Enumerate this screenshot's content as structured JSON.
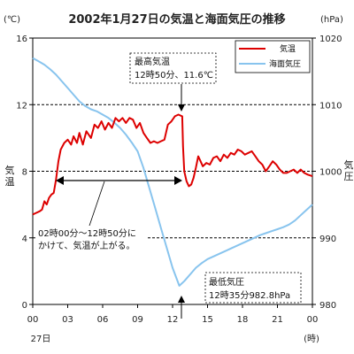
{
  "chart_data": {
    "type": "line",
    "title": "2002年1月27日の気温と海面気圧の推移",
    "y_left": {
      "unit": "(℃)",
      "label": [
        "気",
        "温"
      ],
      "ticks": [
        0,
        4,
        8,
        12,
        16
      ],
      "range": [
        0,
        16
      ]
    },
    "y_right": {
      "unit": "(hPa)",
      "label": [
        "気",
        "圧"
      ],
      "ticks": [
        980,
        990,
        1000,
        1010,
        1020
      ],
      "range": [
        980,
        1020
      ]
    },
    "x_axis": {
      "ticks": [
        "00",
        "03",
        "06",
        "09",
        "12",
        "15",
        "18",
        "21",
        "00"
      ],
      "tick_hours": [
        0,
        3,
        6,
        9,
        12,
        15,
        18,
        21,
        24
      ],
      "day_label": "27日",
      "unit_label": "(時)",
      "range": [
        0,
        24
      ]
    },
    "grid": "dashed horizontal lines at 4, 8, 12 ℃",
    "legend": {
      "position": "top-right",
      "items": [
        {
          "name": "気温",
          "color": "#dd0000"
        },
        {
          "name": "海面気圧",
          "color": "#88c4ee"
        }
      ]
    },
    "series": [
      {
        "name": "気温",
        "axis": "left",
        "color": "#dd0000",
        "points": [
          [
            0,
            5.4
          ],
          [
            0.3,
            5.5
          ],
          [
            0.6,
            5.6
          ],
          [
            0.8,
            5.7
          ],
          [
            1.0,
            6.2
          ],
          [
            1.2,
            6.0
          ],
          [
            1.4,
            6.4
          ],
          [
            1.6,
            6.6
          ],
          [
            1.8,
            6.7
          ],
          [
            2.0,
            7.5
          ],
          [
            2.2,
            8.6
          ],
          [
            2.4,
            9.3
          ],
          [
            2.7,
            9.7
          ],
          [
            3.0,
            9.9
          ],
          [
            3.3,
            9.6
          ],
          [
            3.5,
            10.1
          ],
          [
            3.8,
            9.7
          ],
          [
            4.0,
            10.3
          ],
          [
            4.3,
            9.6
          ],
          [
            4.6,
            10.4
          ],
          [
            5.0,
            10.0
          ],
          [
            5.3,
            10.8
          ],
          [
            5.6,
            10.6
          ],
          [
            5.9,
            11.0
          ],
          [
            6.2,
            10.5
          ],
          [
            6.5,
            10.9
          ],
          [
            6.8,
            10.6
          ],
          [
            7.1,
            11.2
          ],
          [
            7.4,
            11.0
          ],
          [
            7.7,
            11.2
          ],
          [
            8.0,
            10.9
          ],
          [
            8.3,
            11.2
          ],
          [
            8.6,
            11.1
          ],
          [
            8.9,
            10.6
          ],
          [
            9.2,
            10.9
          ],
          [
            9.5,
            10.3
          ],
          [
            9.8,
            10.0
          ],
          [
            10.1,
            9.7
          ],
          [
            10.4,
            9.8
          ],
          [
            10.7,
            9.7
          ],
          [
            11.0,
            9.8
          ],
          [
            11.3,
            9.9
          ],
          [
            11.6,
            10.8
          ],
          [
            11.9,
            11.0
          ],
          [
            12.2,
            11.3
          ],
          [
            12.5,
            11.4
          ],
          [
            12.83,
            11.3
          ],
          [
            12.9,
            9.5
          ],
          [
            13.0,
            8.0
          ],
          [
            13.2,
            7.4
          ],
          [
            13.4,
            7.1
          ],
          [
            13.6,
            7.2
          ],
          [
            13.8,
            7.6
          ],
          [
            14.0,
            8.2
          ],
          [
            14.2,
            8.9
          ],
          [
            14.4,
            8.6
          ],
          [
            14.6,
            8.3
          ],
          [
            14.9,
            8.5
          ],
          [
            15.2,
            8.4
          ],
          [
            15.5,
            8.8
          ],
          [
            15.8,
            8.9
          ],
          [
            16.1,
            8.6
          ],
          [
            16.4,
            9.0
          ],
          [
            16.7,
            8.8
          ],
          [
            17.0,
            9.1
          ],
          [
            17.3,
            9.0
          ],
          [
            17.6,
            9.3
          ],
          [
            17.9,
            9.2
          ],
          [
            18.2,
            9.0
          ],
          [
            18.5,
            9.1
          ],
          [
            18.8,
            9.2
          ],
          [
            19.1,
            8.9
          ],
          [
            19.4,
            8.6
          ],
          [
            19.7,
            8.4
          ],
          [
            20.0,
            8.0
          ],
          [
            20.3,
            8.3
          ],
          [
            20.6,
            8.6
          ],
          [
            20.9,
            8.4
          ],
          [
            21.2,
            8.1
          ],
          [
            21.5,
            7.9
          ],
          [
            21.8,
            7.9
          ],
          [
            22.1,
            8.0
          ],
          [
            22.4,
            8.1
          ],
          [
            22.7,
            7.9
          ],
          [
            23.0,
            8.1
          ],
          [
            23.3,
            7.9
          ],
          [
            23.6,
            7.8
          ],
          [
            24.0,
            7.7
          ]
        ]
      },
      {
        "name": "海面気圧",
        "axis": "right",
        "color": "#88c4ee",
        "points": [
          [
            0,
            1017.0
          ],
          [
            0.5,
            1016.5
          ],
          [
            1.0,
            1016.0
          ],
          [
            1.5,
            1015.3
          ],
          [
            2.0,
            1014.5
          ],
          [
            2.5,
            1013.5
          ],
          [
            3.0,
            1012.5
          ],
          [
            3.5,
            1011.5
          ],
          [
            4.0,
            1010.5
          ],
          [
            4.5,
            1009.8
          ],
          [
            5.0,
            1009.3
          ],
          [
            5.5,
            1009.0
          ],
          [
            6.0,
            1008.5
          ],
          [
            6.5,
            1008.0
          ],
          [
            7.0,
            1007.3
          ],
          [
            7.5,
            1006.5
          ],
          [
            8.0,
            1005.5
          ],
          [
            8.5,
            1004.3
          ],
          [
            9.0,
            1003.0
          ],
          [
            9.5,
            1000.5
          ],
          [
            10.0,
            997.5
          ],
          [
            10.5,
            994.5
          ],
          [
            11.0,
            991.5
          ],
          [
            11.5,
            988.5
          ],
          [
            12.0,
            985.5
          ],
          [
            12.58,
            982.8
          ],
          [
            13.0,
            983.5
          ],
          [
            13.5,
            984.5
          ],
          [
            14.0,
            985.5
          ],
          [
            14.5,
            986.2
          ],
          [
            15.0,
            986.8
          ],
          [
            15.5,
            987.2
          ],
          [
            16.0,
            987.6
          ],
          [
            16.5,
            988.0
          ],
          [
            17.0,
            988.4
          ],
          [
            17.5,
            988.8
          ],
          [
            18.0,
            989.2
          ],
          [
            18.5,
            989.6
          ],
          [
            19.0,
            990.0
          ],
          [
            19.5,
            990.4
          ],
          [
            20.0,
            990.7
          ],
          [
            20.5,
            991.0
          ],
          [
            21.0,
            991.3
          ],
          [
            21.5,
            991.6
          ],
          [
            22.0,
            992.0
          ],
          [
            22.5,
            992.6
          ],
          [
            23.0,
            993.4
          ],
          [
            23.5,
            994.2
          ],
          [
            24.0,
            995.0
          ]
        ]
      }
    ],
    "annotations": [
      {
        "lines": [
          "最高気温",
          "12時50分、11.6℃"
        ]
      },
      {
        "lines": [
          "02時00分〜12時50分に",
          "かけて、気温が上がる。"
        ]
      },
      {
        "lines": [
          "最低気圧",
          "12時35分982.8hPa"
        ]
      }
    ]
  }
}
